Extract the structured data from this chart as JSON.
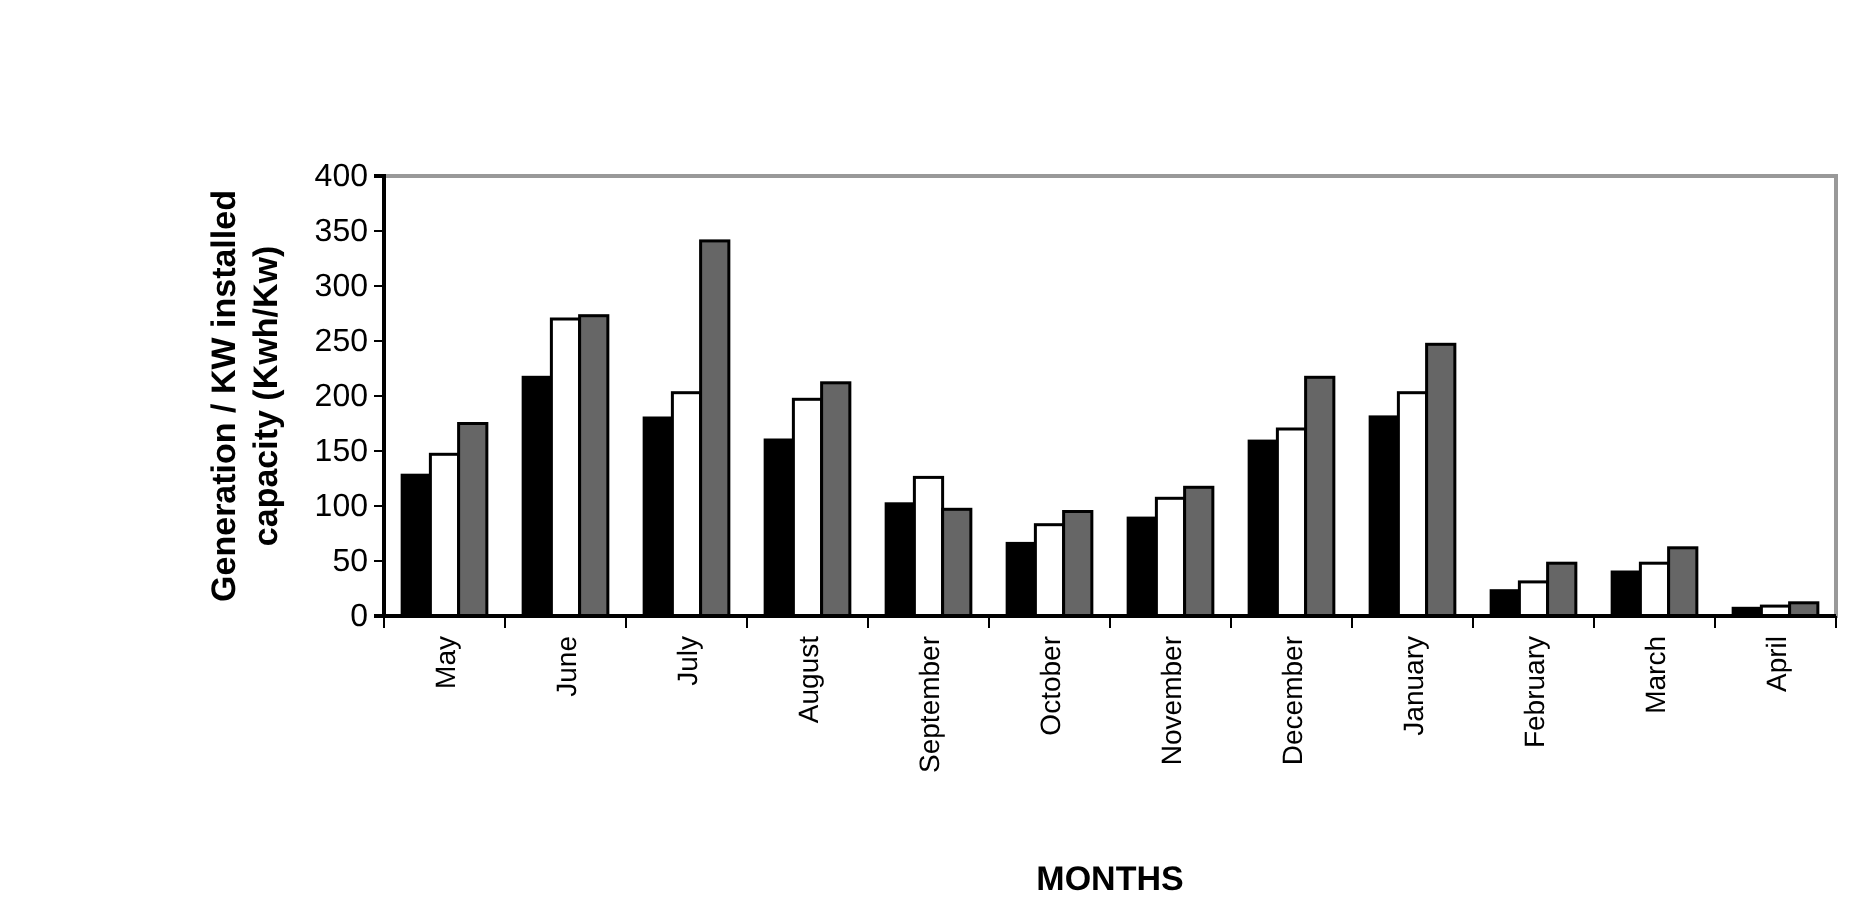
{
  "chart_data": {
    "type": "bar",
    "xlabel": "MONTHS",
    "ylabel": "Generation / KW installed capacity (Kwh/Kw)",
    "categories": [
      "May",
      "June",
      "July",
      "August",
      "September",
      "October",
      "November",
      "December",
      "January",
      "February",
      "March",
      "April"
    ],
    "series": [
      {
        "color": "#000000",
        "values": [
          128,
          217,
          180,
          160,
          102,
          66,
          89,
          159,
          181,
          23,
          40,
          7
        ]
      },
      {
        "color": "#ffffff",
        "values": [
          147,
          270,
          203,
          197,
          126,
          83,
          107,
          170,
          203,
          31,
          48,
          9
        ]
      },
      {
        "color": "#666666",
        "values": [
          175,
          273,
          341,
          212,
          97,
          95,
          117,
          217,
          247,
          48,
          62,
          12
        ]
      }
    ],
    "ylim": [
      0,
      400
    ],
    "yticks": [
      0,
      50,
      100,
      150,
      200,
      250,
      300,
      350,
      400
    ],
    "grid": false
  }
}
